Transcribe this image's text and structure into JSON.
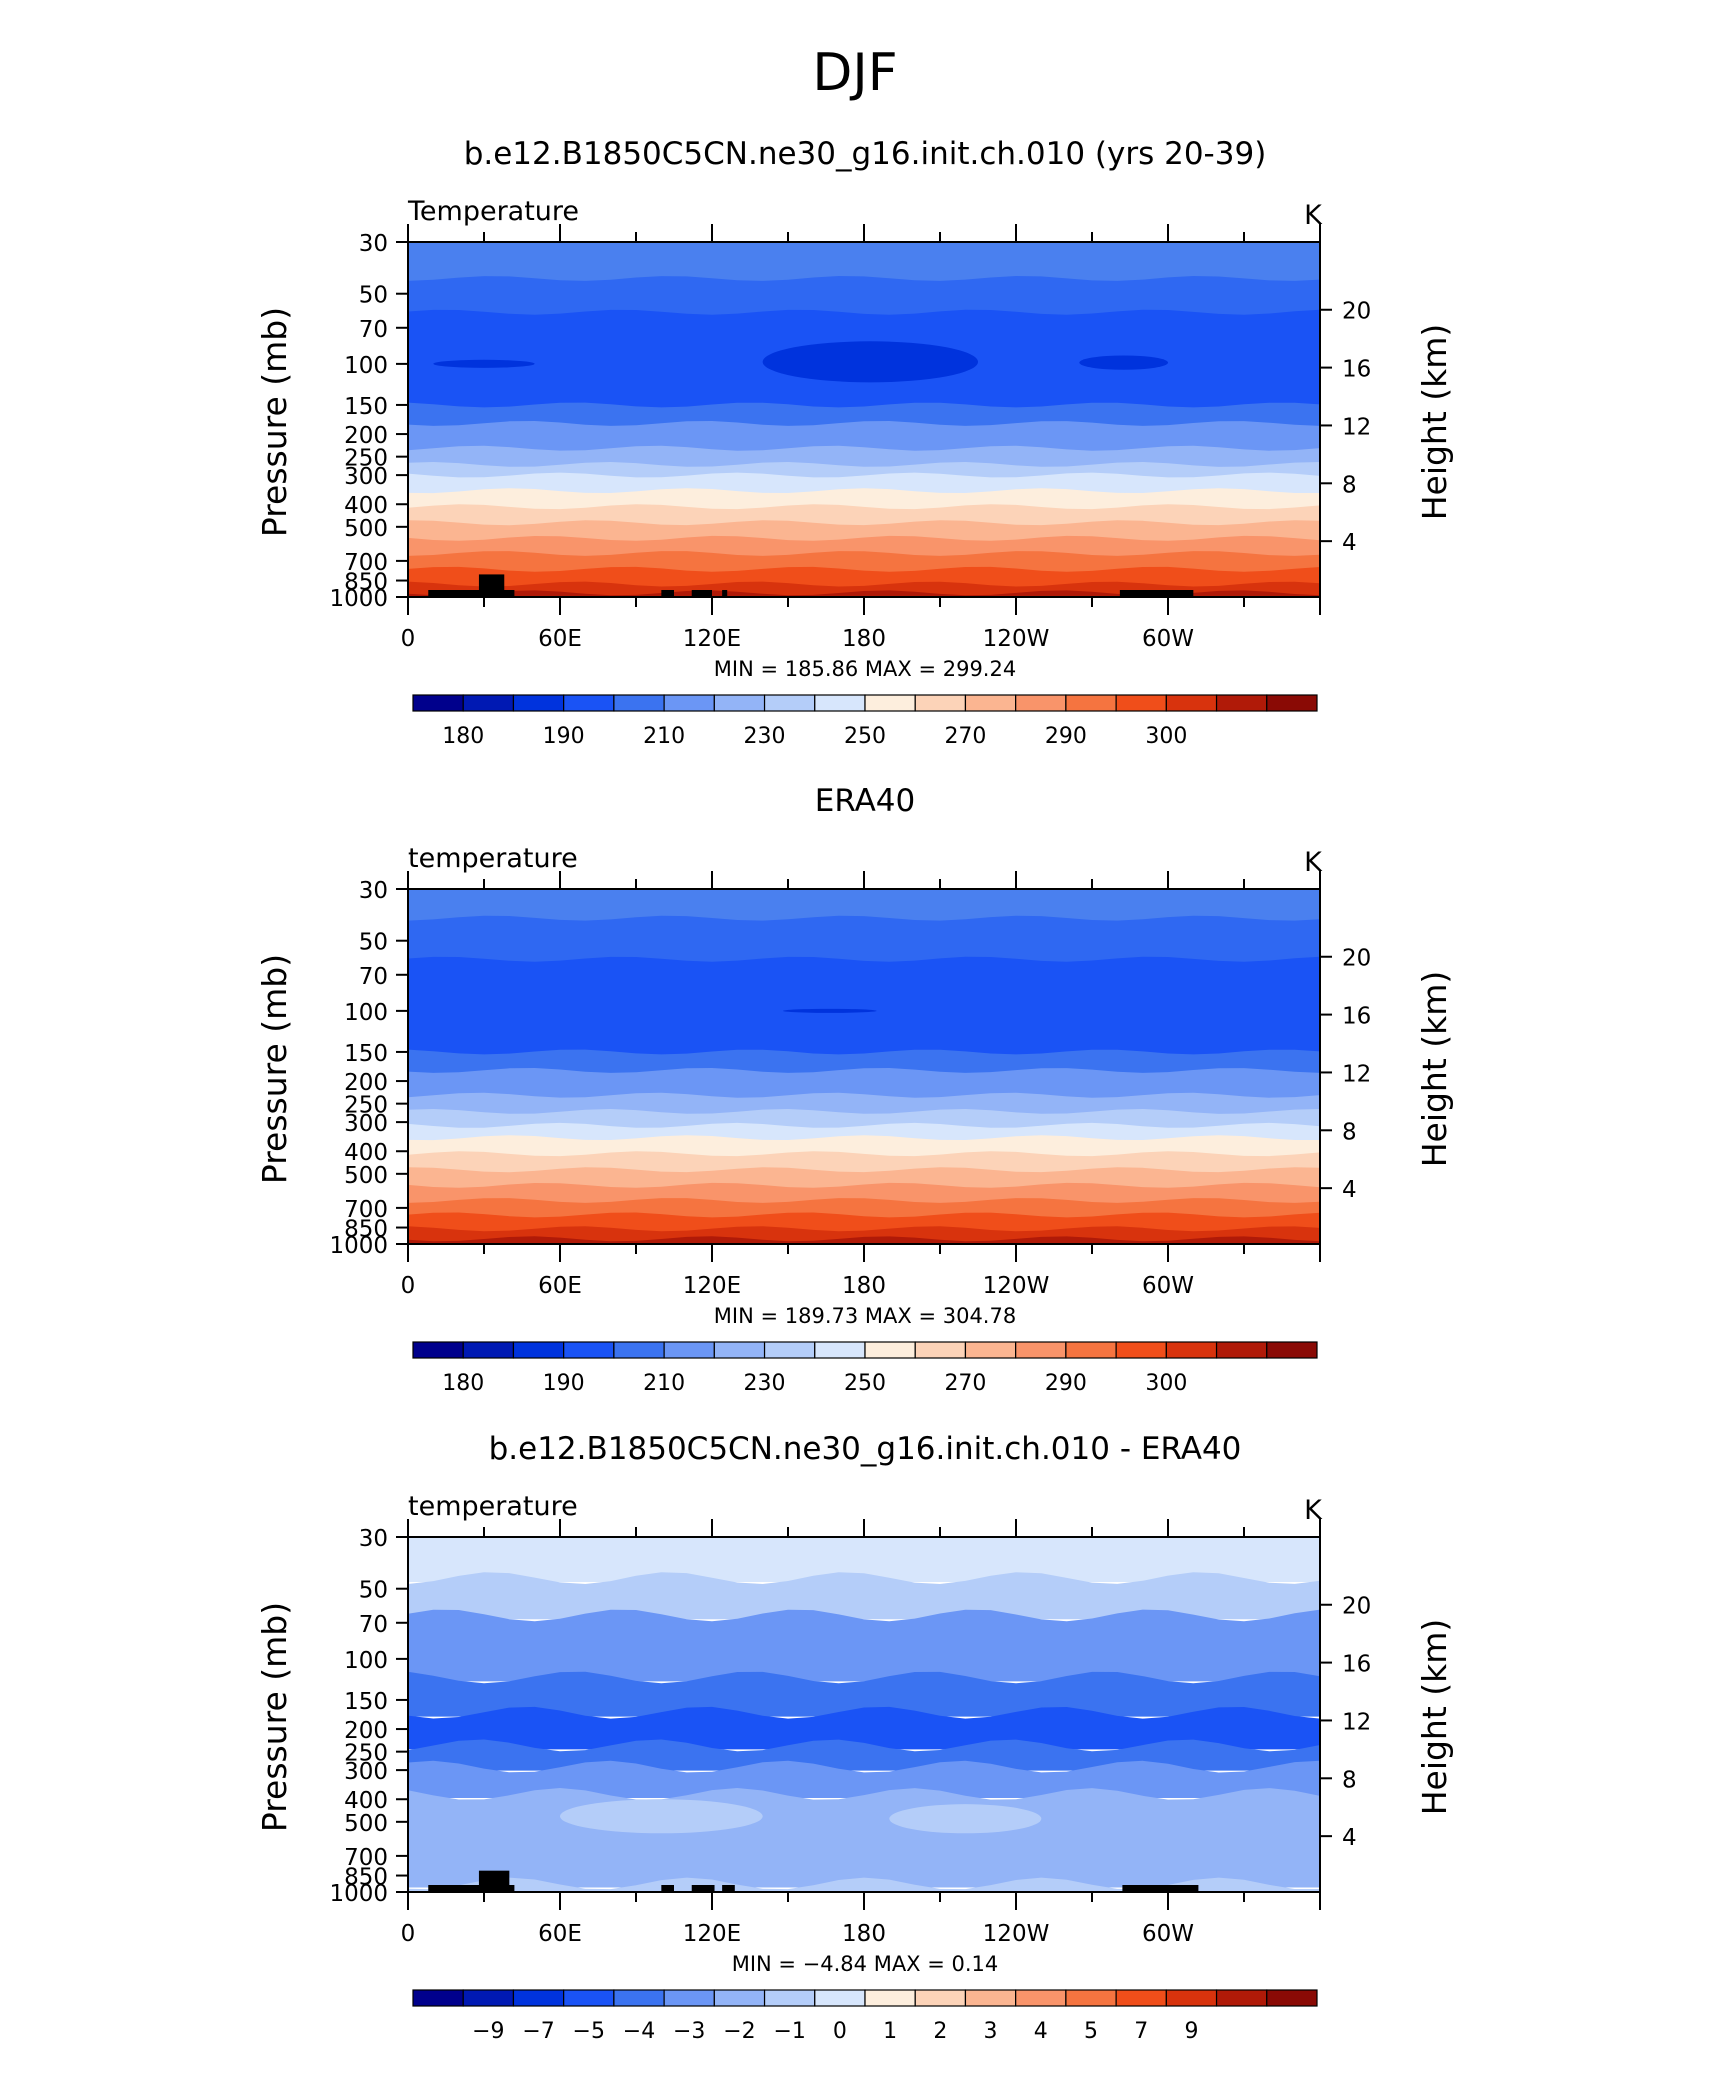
{
  "figure": {
    "title": "DJF"
  },
  "colorbars": {
    "abs": {
      "colors": [
        "#00008c",
        "#0019b3",
        "#0033dd",
        "#1a53f5",
        "#3b73f0",
        "#6b96f5",
        "#93b4f7",
        "#b4cdf9",
        "#d7e6fc",
        "#fdeedd",
        "#fcd3b8",
        "#fbb591",
        "#f9946a",
        "#f57440",
        "#f04e1a",
        "#d8330d",
        "#b01a08",
        "#8a0a05"
      ],
      "labels": [
        "180",
        "190",
        "210",
        "230",
        "250",
        "270",
        "290",
        "300"
      ]
    },
    "diff": {
      "colors": [
        "#00008c",
        "#0019b3",
        "#0033dd",
        "#1a53f5",
        "#3b73f0",
        "#6b96f5",
        "#93b4f7",
        "#b4cdf9",
        "#d7e6fc",
        "#fdeedd",
        "#fcd3b8",
        "#fbb591",
        "#f9946a",
        "#f57440",
        "#f04e1a",
        "#d8330d",
        "#b01a08",
        "#8a0a05"
      ],
      "labels": [
        "−9",
        "−7",
        "−5",
        "−4",
        "−3",
        "−2",
        "−1",
        "0",
        "1",
        "2",
        "3",
        "4",
        "5",
        "7",
        "9"
      ]
    }
  },
  "panels": [
    {
      "title": "b.e12.B1850C5CN.ne30_g16.init.ch.010 (yrs 20-39)",
      "variable": "Temperature",
      "units": "K",
      "stats": "MIN =  185.86   MAX =  299.24",
      "colorbar": "abs"
    },
    {
      "title": "ERA40",
      "variable": "temperature",
      "units": "K",
      "stats": "MIN =  189.73   MAX =  304.78",
      "colorbar": "abs"
    },
    {
      "title": "b.e12.B1850C5CN.ne30_g16.init.ch.010 - ERA40",
      "variable": "temperature",
      "units": "K",
      "stats": "MIN =    −4.84   MAX =      0.14",
      "colorbar": "diff"
    }
  ],
  "axes": {
    "ylabel": "Pressure  (mb)",
    "y2label": "Height  (km)",
    "pressure_ticks": [
      "30",
      "50",
      "70",
      "100",
      "150",
      "200",
      "250",
      "300",
      "400",
      "500",
      "700",
      "850",
      "1000"
    ],
    "height_ticks": [
      "20",
      "16",
      "12",
      "8",
      "4"
    ],
    "lon_ticks": [
      "0",
      "60E",
      "120E",
      "180",
      "120W",
      "60W"
    ]
  },
  "chart_data": [
    {
      "type": "heatmap",
      "title": "b.e12.B1850C5CN.ne30_g16.init.ch.010 (yrs 20-39)",
      "xlabel": "",
      "ylabel": "Pressure  (mb)",
      "x_ticks": [
        "0",
        "60E",
        "120E",
        "180",
        "120W",
        "60W"
      ],
      "xlim": [
        0,
        360
      ],
      "y_ticks": [
        30,
        50,
        70,
        100,
        150,
        200,
        250,
        300,
        400,
        500,
        700,
        850,
        1000
      ],
      "ylim": [
        1000,
        30
      ],
      "yscale": "log",
      "y2label": "Height  (km)",
      "y2_ticks": [
        4,
        8,
        12,
        16,
        20
      ],
      "units": "K",
      "min": 185.86,
      "max": 299.24,
      "contour_levels": [
        175,
        180,
        185,
        190,
        200,
        210,
        220,
        230,
        240,
        250,
        260,
        270,
        280,
        285,
        290,
        295,
        300
      ],
      "bands_top_to_bottom": [
        {
          "p": [
            30,
            43
          ],
          "color": "#4a80ef"
        },
        {
          "p": [
            43,
            60
          ],
          "color": "#2f68f2"
        },
        {
          "p": [
            60,
            150
          ],
          "color": "#1a53f5"
        },
        {
          "p": [
            150,
            180
          ],
          "color": "#3b73f0"
        },
        {
          "p": [
            180,
            230
          ],
          "color": "#6b96f5"
        },
        {
          "p": [
            230,
            270
          ],
          "color": "#93b4f7"
        },
        {
          "p": [
            270,
            300
          ],
          "color": "#b4cdf9"
        },
        {
          "p": [
            300,
            350
          ],
          "color": "#d7e6fc"
        },
        {
          "p": [
            350,
            410
          ],
          "color": "#fdeedd"
        },
        {
          "p": [
            410,
            480
          ],
          "color": "#fcd3b8"
        },
        {
          "p": [
            480,
            560
          ],
          "color": "#fbb591"
        },
        {
          "p": [
            560,
            650
          ],
          "color": "#f9946a"
        },
        {
          "p": [
            650,
            760
          ],
          "color": "#f57440"
        },
        {
          "p": [
            760,
            880
          ],
          "color": "#f04e1a"
        },
        {
          "p": [
            880,
            960
          ],
          "color": "#d8330d"
        },
        {
          "p": [
            960,
            1000
          ],
          "color": "#b01a08"
        }
      ],
      "cold_cores": [
        {
          "lon": [
            140,
            225
          ],
          "p": [
            80,
            120
          ],
          "color": "#0033dd"
        },
        {
          "lon": [
            10,
            50
          ],
          "p": [
            96,
            104
          ],
          "color": "#0033dd"
        },
        {
          "lon": [
            265,
            300
          ],
          "p": [
            92,
            106
          ],
          "color": "#0033dd"
        }
      ],
      "topography": [
        {
          "lon": [
            8,
            42
          ]
        },
        {
          "lon": [
            28,
            38
          ],
          "top": 800
        },
        {
          "lon": [
            100,
            105
          ]
        },
        {
          "lon": [
            112,
            120
          ]
        },
        {
          "lon": [
            124,
            126
          ]
        },
        {
          "lon": [
            281,
            310
          ]
        }
      ]
    },
    {
      "type": "heatmap",
      "title": "ERA40",
      "xlabel": "",
      "ylabel": "Pressure  (mb)",
      "x_ticks": [
        "0",
        "60E",
        "120E",
        "180",
        "120W",
        "60W"
      ],
      "xlim": [
        0,
        360
      ],
      "y_ticks": [
        30,
        50,
        70,
        100,
        150,
        200,
        250,
        300,
        400,
        500,
        700,
        850,
        1000
      ],
      "ylim": [
        1000,
        30
      ],
      "yscale": "log",
      "y2label": "Height  (km)",
      "y2_ticks": [
        4,
        8,
        12,
        16,
        20
      ],
      "units": "K",
      "min": 189.73,
      "max": 304.78,
      "bands_top_to_bottom": [
        {
          "p": [
            30,
            40
          ],
          "color": "#4a80ef"
        },
        {
          "p": [
            40,
            60
          ],
          "color": "#2f68f2"
        },
        {
          "p": [
            60,
            150
          ],
          "color": "#1a53f5"
        },
        {
          "p": [
            150,
            180
          ],
          "color": "#3b73f0"
        },
        {
          "p": [
            180,
            230
          ],
          "color": "#6b96f5"
        },
        {
          "p": [
            230,
            270
          ],
          "color": "#93b4f7"
        },
        {
          "p": [
            270,
            310
          ],
          "color": "#b4cdf9"
        },
        {
          "p": [
            310,
            350
          ],
          "color": "#d7e6fc"
        },
        {
          "p": [
            350,
            410
          ],
          "color": "#fdeedd"
        },
        {
          "p": [
            410,
            480
          ],
          "color": "#fcd3b8"
        },
        {
          "p": [
            480,
            560
          ],
          "color": "#fbb591"
        },
        {
          "p": [
            560,
            650
          ],
          "color": "#f9946a"
        },
        {
          "p": [
            650,
            750
          ],
          "color": "#f57440"
        },
        {
          "p": [
            750,
            860
          ],
          "color": "#f04e1a"
        },
        {
          "p": [
            860,
            950
          ],
          "color": "#d8330d"
        },
        {
          "p": [
            950,
            1000
          ],
          "color": "#b01a08"
        }
      ],
      "cold_cores": [
        {
          "lon": [
            148,
            185
          ],
          "p": [
            98,
            102
          ],
          "color": "#0033dd"
        }
      ],
      "topography": []
    },
    {
      "type": "heatmap",
      "title": "b.e12.B1850C5CN.ne30_g16.init.ch.010 - ERA40",
      "xlabel": "",
      "ylabel": "Pressure  (mb)",
      "x_ticks": [
        "0",
        "60E",
        "120E",
        "180",
        "120W",
        "60W"
      ],
      "xlim": [
        0,
        360
      ],
      "y_ticks": [
        30,
        50,
        70,
        100,
        150,
        200,
        250,
        300,
        400,
        500,
        700,
        850,
        1000
      ],
      "ylim": [
        1000,
        30
      ],
      "yscale": "log",
      "y2label": "Height  (km)",
      "y2_ticks": [
        4,
        8,
        12,
        16,
        20
      ],
      "units": "K",
      "min": -4.84,
      "max": 0.14,
      "contour_levels": [
        -9,
        -7,
        -5,
        -4,
        -3,
        -2,
        -1,
        0,
        1,
        2,
        3,
        4,
        5,
        7,
        9
      ],
      "bands_top_to_bottom": [
        {
          "p": [
            30,
            45
          ],
          "color": "#d7e6fc"
        },
        {
          "p": [
            45,
            65
          ],
          "color": "#b4cdf9"
        },
        {
          "p": [
            65,
            120
          ],
          "color": "#6b96f5"
        },
        {
          "p": [
            120,
            170
          ],
          "color": "#3b73f0"
        },
        {
          "p": [
            170,
            235
          ],
          "color": "#1a53f5"
        },
        {
          "p": [
            235,
            290
          ],
          "color": "#3b73f0"
        },
        {
          "p": [
            290,
            380
          ],
          "color": "#6b96f5"
        },
        {
          "p": [
            380,
            920
          ],
          "color": "#93b4f7"
        },
        {
          "p": [
            920,
            1000
          ],
          "color": "#b4cdf9"
        }
      ],
      "warm_patches": [
        {
          "lon": [
            60,
            140
          ],
          "p": [
            400,
            560
          ],
          "color": "#b4cdf9"
        },
        {
          "lon": [
            190,
            250
          ],
          "p": [
            420,
            560
          ],
          "color": "#b4cdf9"
        }
      ],
      "topography": [
        {
          "lon": [
            8,
            42
          ]
        },
        {
          "lon": [
            28,
            40
          ],
          "top": 810
        },
        {
          "lon": [
            100,
            105
          ]
        },
        {
          "lon": [
            112,
            121
          ]
        },
        {
          "lon": [
            124,
            129
          ]
        },
        {
          "lon": [
            282,
            312
          ]
        }
      ]
    }
  ]
}
